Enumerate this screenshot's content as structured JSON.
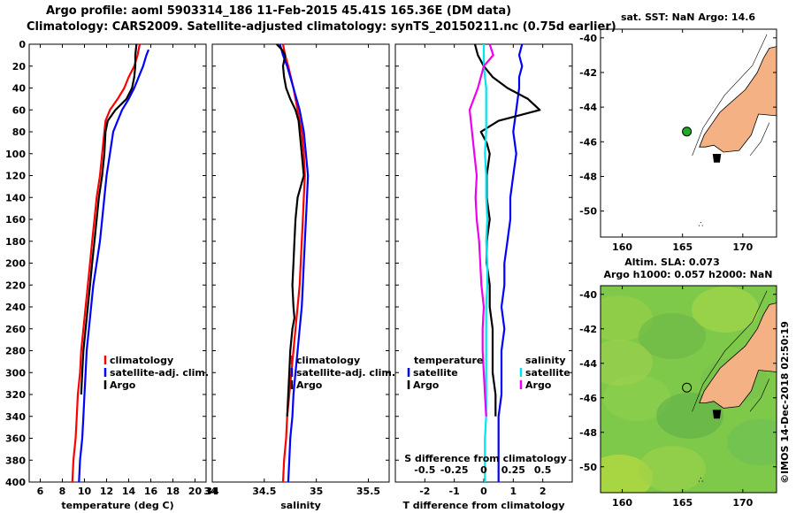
{
  "header": {
    "line1": "Argo profile: aoml 5903314_186 11-Feb-2015 45.41S 165.36E (DM data)",
    "line2": "Climatology: CARS2009. Satellite-adjusted climatology: synTS_20150211.nc (0.75d earlier)"
  },
  "colors": {
    "climatology": "#ff0000",
    "satellite": "#0000ff",
    "argo": "#000000",
    "sat_diff": "#00e5ee",
    "clim_diff": "#ee00ee",
    "land": "#f4b183",
    "map_dot": "#22aa22"
  },
  "depth_ticks": [
    0,
    20,
    40,
    60,
    80,
    100,
    120,
    140,
    160,
    180,
    200,
    220,
    240,
    260,
    280,
    300,
    320,
    340,
    360,
    380,
    400
  ],
  "chart_data": [
    {
      "type": "line",
      "name": "temperature-panel",
      "xlabel": "temperature (deg C)",
      "ylabel": "depth",
      "xlim": [
        5,
        21
      ],
      "ylim": [
        400,
        0
      ],
      "xticks": [
        6,
        8,
        10,
        12,
        14,
        16,
        18,
        20
      ],
      "legend": [
        "climatology",
        "satellite-adj. clim.",
        "Argo"
      ],
      "series": [
        {
          "name": "climatology",
          "color": "#ff0000",
          "points": [
            [
              15.0,
              0
            ],
            [
              14.8,
              10
            ],
            [
              14.5,
              20
            ],
            [
              14.0,
              30
            ],
            [
              13.6,
              40
            ],
            [
              13.0,
              50
            ],
            [
              12.3,
              60
            ],
            [
              11.9,
              70
            ],
            [
              11.8,
              80
            ],
            [
              11.6,
              100
            ],
            [
              11.4,
              120
            ],
            [
              11.1,
              140
            ],
            [
              10.9,
              160
            ],
            [
              10.7,
              180
            ],
            [
              10.5,
              200
            ],
            [
              10.3,
              220
            ],
            [
              10.1,
              240
            ],
            [
              9.9,
              260
            ],
            [
              9.7,
              280
            ],
            [
              9.6,
              300
            ],
            [
              9.4,
              320
            ],
            [
              9.3,
              340
            ],
            [
              9.2,
              360
            ],
            [
              9.0,
              380
            ],
            [
              8.9,
              400
            ]
          ]
        },
        {
          "name": "satellite-adj. clim.",
          "color": "#0000ff",
          "points": [
            [
              15.8,
              5
            ],
            [
              15.6,
              10
            ],
            [
              15.3,
              20
            ],
            [
              14.9,
              30
            ],
            [
              14.5,
              40
            ],
            [
              14.0,
              50
            ],
            [
              13.4,
              60
            ],
            [
              13.0,
              70
            ],
            [
              12.6,
              80
            ],
            [
              12.3,
              100
            ],
            [
              12.0,
              120
            ],
            [
              11.8,
              140
            ],
            [
              11.6,
              160
            ],
            [
              11.4,
              180
            ],
            [
              11.1,
              200
            ],
            [
              10.8,
              220
            ],
            [
              10.6,
              240
            ],
            [
              10.4,
              260
            ],
            [
              10.2,
              280
            ],
            [
              10.1,
              300
            ],
            [
              10.0,
              320
            ],
            [
              9.9,
              340
            ],
            [
              9.8,
              360
            ],
            [
              9.6,
              380
            ],
            [
              9.5,
              400
            ]
          ]
        },
        {
          "name": "Argo",
          "color": "#000000",
          "points": [
            [
              14.7,
              0
            ],
            [
              14.6,
              10
            ],
            [
              14.6,
              20
            ],
            [
              14.5,
              30
            ],
            [
              14.3,
              40
            ],
            [
              13.8,
              50
            ],
            [
              12.8,
              60
            ],
            [
              12.1,
              70
            ],
            [
              11.9,
              80
            ],
            [
              11.8,
              100
            ],
            [
              11.6,
              120
            ],
            [
              11.3,
              140
            ],
            [
              11.1,
              160
            ],
            [
              10.9,
              180
            ],
            [
              10.7,
              200
            ],
            [
              10.5,
              220
            ],
            [
              10.3,
              240
            ],
            [
              10.1,
              260
            ],
            [
              9.9,
              280
            ],
            [
              9.8,
              300
            ],
            [
              9.7,
              320
            ]
          ]
        }
      ]
    },
    {
      "type": "line",
      "name": "salinity-panel",
      "xlabel": "salinity",
      "ylabel": "depth",
      "xlim": [
        34,
        35.7
      ],
      "ylim": [
        400,
        0
      ],
      "xticks": [
        34,
        34.5,
        35,
        35.5
      ],
      "xticklabels": [
        "34",
        "34.5",
        "35",
        "35.5"
      ],
      "legend": [
        "climatology",
        "satellite-adj. clim.",
        "Argo"
      ],
      "series": [
        {
          "name": "climatology",
          "color": "#ff0000",
          "points": [
            [
              34.68,
              0
            ],
            [
              34.7,
              10
            ],
            [
              34.73,
              20
            ],
            [
              34.78,
              40
            ],
            [
              34.82,
              60
            ],
            [
              34.86,
              80
            ],
            [
              34.88,
              100
            ],
            [
              34.89,
              120
            ],
            [
              34.88,
              140
            ],
            [
              34.87,
              160
            ],
            [
              34.86,
              180
            ],
            [
              34.85,
              200
            ],
            [
              34.84,
              220
            ],
            [
              34.82,
              240
            ],
            [
              34.8,
              260
            ],
            [
              34.78,
              280
            ],
            [
              34.76,
              300
            ],
            [
              34.74,
              320
            ],
            [
              34.72,
              340
            ],
            [
              34.71,
              360
            ],
            [
              34.69,
              380
            ],
            [
              34.68,
              400
            ]
          ]
        },
        {
          "name": "satellite-adj. clim.",
          "color": "#0000ff",
          "points": [
            [
              34.65,
              0
            ],
            [
              34.68,
              10
            ],
            [
              34.72,
              20
            ],
            [
              34.78,
              40
            ],
            [
              34.84,
              60
            ],
            [
              34.88,
              80
            ],
            [
              34.9,
              100
            ],
            [
              34.92,
              120
            ],
            [
              34.91,
              140
            ],
            [
              34.9,
              160
            ],
            [
              34.89,
              180
            ],
            [
              34.88,
              200
            ],
            [
              34.87,
              220
            ],
            [
              34.86,
              240
            ],
            [
              34.84,
              260
            ],
            [
              34.82,
              280
            ],
            [
              34.8,
              300
            ],
            [
              34.78,
              320
            ],
            [
              34.77,
              340
            ],
            [
              34.75,
              360
            ],
            [
              34.74,
              380
            ],
            [
              34.73,
              400
            ]
          ]
        },
        {
          "name": "Argo",
          "color": "#000000",
          "points": [
            [
              34.62,
              0
            ],
            [
              34.67,
              5
            ],
            [
              34.7,
              10
            ],
            [
              34.68,
              20
            ],
            [
              34.69,
              30
            ],
            [
              34.71,
              40
            ],
            [
              34.75,
              50
            ],
            [
              34.8,
              60
            ],
            [
              34.83,
              70
            ],
            [
              34.84,
              80
            ],
            [
              34.86,
              100
            ],
            [
              34.88,
              120
            ],
            [
              34.85,
              130
            ],
            [
              34.82,
              140
            ],
            [
              34.8,
              160
            ],
            [
              34.79,
              180
            ],
            [
              34.78,
              200
            ],
            [
              34.77,
              220
            ],
            [
              34.78,
              240
            ],
            [
              34.79,
              250
            ],
            [
              34.77,
              260
            ],
            [
              34.75,
              280
            ],
            [
              34.74,
              300
            ],
            [
              34.73,
              320
            ],
            [
              34.72,
              340
            ]
          ]
        }
      ]
    },
    {
      "type": "line",
      "name": "difference-panel",
      "xlabel": "T difference from climatology",
      "xlabel_top": "S difference from climatology",
      "ylabel": "depth",
      "xlim": [
        -3,
        3
      ],
      "ylim": [
        400,
        0
      ],
      "xticks": [
        -2,
        -1,
        0,
        1,
        2
      ],
      "sticks": [
        -0.5,
        -0.25,
        0,
        0.25,
        0.5
      ],
      "sticklabels": [
        "-0.5",
        "-0.25",
        "0",
        "0.25",
        "0.5"
      ],
      "legend_temperature_title": "temperature",
      "legend_salinity_title": "salinity",
      "legend_temperature": [
        "satellite",
        "Argo"
      ],
      "legend_salinity": [
        "satellite",
        "Argo"
      ],
      "series": [
        {
          "name": "temperature satellite",
          "color": "#0000ff",
          "points": [
            [
              1.3,
              0
            ],
            [
              1.2,
              10
            ],
            [
              1.3,
              20
            ],
            [
              1.2,
              30
            ],
            [
              1.2,
              40
            ],
            [
              1.1,
              60
            ],
            [
              1.0,
              80
            ],
            [
              1.1,
              100
            ],
            [
              1.0,
              120
            ],
            [
              0.9,
              140
            ],
            [
              0.9,
              160
            ],
            [
              0.8,
              180
            ],
            [
              0.7,
              200
            ],
            [
              0.7,
              220
            ],
            [
              0.6,
              240
            ],
            [
              0.7,
              260
            ],
            [
              0.6,
              280
            ],
            [
              0.6,
              300
            ],
            [
              0.6,
              320
            ],
            [
              0.5,
              340
            ],
            [
              0.5,
              360
            ],
            [
              0.5,
              380
            ],
            [
              0.5,
              400
            ]
          ]
        },
        {
          "name": "temperature Argo",
          "color": "#000000",
          "points": [
            [
              -0.3,
              0
            ],
            [
              -0.2,
              10
            ],
            [
              0.0,
              20
            ],
            [
              0.3,
              30
            ],
            [
              0.8,
              40
            ],
            [
              1.5,
              50
            ],
            [
              1.9,
              60
            ],
            [
              0.5,
              70
            ],
            [
              -0.1,
              80
            ],
            [
              0.1,
              90
            ],
            [
              0.2,
              100
            ],
            [
              0.1,
              120
            ],
            [
              0.1,
              140
            ],
            [
              0.2,
              160
            ],
            [
              0.1,
              180
            ],
            [
              0.1,
              200
            ],
            [
              0.2,
              220
            ],
            [
              0.2,
              240
            ],
            [
              0.3,
              260
            ],
            [
              0.3,
              280
            ],
            [
              0.3,
              300
            ],
            [
              0.4,
              320
            ],
            [
              0.4,
              340
            ]
          ]
        },
        {
          "name": "salinity satellite",
          "color": "#00e5ee",
          "points": [
            [
              0.0,
              0
            ],
            [
              0.0,
              20
            ],
            [
              0.02,
              40
            ],
            [
              0.02,
              60
            ],
            [
              0.02,
              80
            ],
            [
              0.01,
              100
            ],
            [
              0.02,
              120
            ],
            [
              0.02,
              140
            ],
            [
              0.03,
              160
            ],
            [
              0.02,
              180
            ],
            [
              0.03,
              200
            ],
            [
              0.03,
              220
            ],
            [
              0.02,
              240
            ],
            [
              0.02,
              260
            ],
            [
              0.02,
              280
            ],
            [
              0.02,
              300
            ],
            [
              0.02,
              320
            ],
            [
              0.02,
              340
            ],
            [
              0.01,
              360
            ],
            [
              0.01,
              380
            ],
            [
              0.01,
              400
            ]
          ]
        },
        {
          "name": "salinity Argo",
          "color": "#ee00ee",
          "points": [
            [
              0.05,
              0
            ],
            [
              0.08,
              10
            ],
            [
              0.0,
              20
            ],
            [
              -0.05,
              40
            ],
            [
              -0.12,
              60
            ],
            [
              -0.1,
              80
            ],
            [
              -0.08,
              100
            ],
            [
              -0.06,
              120
            ],
            [
              -0.07,
              140
            ],
            [
              -0.06,
              160
            ],
            [
              -0.04,
              180
            ],
            [
              -0.03,
              200
            ],
            [
              -0.02,
              220
            ],
            [
              0.0,
              240
            ],
            [
              -0.01,
              260
            ],
            [
              -0.01,
              280
            ],
            [
              0.0,
              300
            ],
            [
              0.01,
              320
            ],
            [
              0.02,
              340
            ]
          ]
        }
      ]
    }
  ],
  "maps": [
    {
      "name": "sst-map",
      "title": "sat. SST: NaN Argo: 14.6",
      "xticks": [
        160,
        165,
        170
      ],
      "yticks": [
        -40,
        -42,
        -44,
        -46,
        -48,
        -50
      ],
      "xlim": [
        158.2,
        172.8
      ],
      "ylim": [
        -51.5,
        -39.5
      ],
      "argo_position": {
        "lon": 165.36,
        "lat": -45.41
      }
    },
    {
      "name": "sla-map",
      "title1": "Altim. SLA: 0.073",
      "title2": "Argo h1000: 0.057 h2000: NaN",
      "xticks": [
        160,
        165,
        170
      ],
      "yticks": [
        -40,
        -42,
        -44,
        -46,
        -48,
        -50
      ],
      "xlim": [
        158.2,
        172.8
      ],
      "ylim": [
        -51.5,
        -39.5
      ],
      "argo_position": {
        "lon": 165.36,
        "lat": -45.41
      }
    }
  ],
  "credit": "©IMOS 14-Dec-2018 02:50:19"
}
